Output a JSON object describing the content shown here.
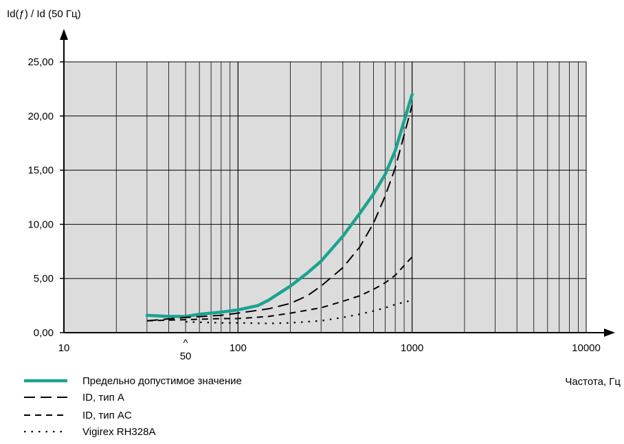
{
  "chart_data": {
    "type": "line",
    "ylabel": "Id(ƒ) / Id (50 Гц)",
    "xlabel": "Частота, Гц",
    "x_scale": "log",
    "xlim": [
      10,
      10000
    ],
    "ylim": [
      0,
      25
    ],
    "x_ticks": [
      "10",
      "100",
      "1000",
      "10000"
    ],
    "y_ticks": [
      "0,00",
      "5,00",
      "10,00",
      "15,00",
      "20,00",
      "25,00"
    ],
    "annotation": {
      "label": "50",
      "marker": "^",
      "x": 50
    },
    "grid": true,
    "legend_position": "bottom-left",
    "series": [
      {
        "name": "Предельно допустимое значение",
        "color": "#1aa390",
        "style": "solid-thick",
        "x": [
          30,
          40,
          50,
          60,
          80,
          100,
          130,
          150,
          200,
          250,
          300,
          400,
          500,
          600,
          700,
          800,
          1000
        ],
        "y": [
          1.6,
          1.5,
          1.5,
          1.7,
          1.9,
          2.1,
          2.5,
          3.0,
          4.3,
          5.5,
          6.6,
          8.9,
          11.0,
          12.8,
          14.6,
          16.8,
          22.0
        ]
      },
      {
        "name": "ID, тип A",
        "color": "#000000",
        "style": "long-dash",
        "x": [
          30,
          50,
          80,
          100,
          150,
          200,
          250,
          300,
          400,
          500,
          600,
          700,
          800,
          1000
        ],
        "y": [
          1.1,
          1.4,
          1.6,
          1.8,
          2.2,
          2.7,
          3.4,
          4.3,
          6.0,
          7.9,
          10.1,
          12.6,
          15.2,
          21.0
        ]
      },
      {
        "name": "ID, тип AC",
        "color": "#000000",
        "style": "short-dash",
        "x": [
          30,
          50,
          80,
          100,
          150,
          200,
          300,
          400,
          500,
          600,
          700,
          800,
          1000
        ],
        "y": [
          1.1,
          1.2,
          1.3,
          1.3,
          1.5,
          1.8,
          2.3,
          2.9,
          3.4,
          4.0,
          4.6,
          5.3,
          7.0
        ]
      },
      {
        "name": "Vigirex RH328A",
        "color": "#000000",
        "style": "dotted",
        "x": [
          50,
          80,
          100,
          150,
          200,
          300,
          400,
          500,
          600,
          700,
          800,
          1000
        ],
        "y": [
          1.0,
          0.9,
          0.9,
          0.85,
          0.9,
          1.1,
          1.4,
          1.7,
          2.0,
          2.3,
          2.6,
          3.0
        ]
      }
    ]
  }
}
